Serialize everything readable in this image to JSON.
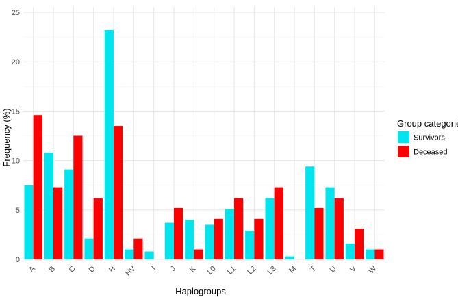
{
  "chart_data": {
    "type": "bar",
    "title": "",
    "xlabel": "Haplogroups",
    "ylabel": "Frequency (%)",
    "ylim": [
      0,
      25
    ],
    "yticks": [
      0,
      5,
      10,
      15,
      20,
      25
    ],
    "grid": true,
    "legend": {
      "title": "Group categories",
      "position": "right"
    },
    "categories": [
      "A",
      "B",
      "C",
      "D",
      "H",
      "HV",
      "I",
      "J",
      "K",
      "L0",
      "L1",
      "L2",
      "L3",
      "M",
      "T",
      "U",
      "V",
      "W"
    ],
    "series": [
      {
        "name": "Survivors",
        "color": "#00E5EE",
        "values": [
          7.5,
          10.8,
          9.1,
          2.1,
          23.2,
          1.0,
          0.8,
          3.7,
          4.0,
          3.5,
          5.1,
          2.9,
          6.2,
          0.3,
          9.4,
          7.3,
          1.6,
          1.0
        ]
      },
      {
        "name": "Deceased",
        "color": "#FF0000",
        "values": [
          14.6,
          7.3,
          12.5,
          6.2,
          13.5,
          2.1,
          0.0,
          5.2,
          1.0,
          4.1,
          6.2,
          4.1,
          7.3,
          0.0,
          5.2,
          6.2,
          3.1,
          1.0
        ]
      }
    ]
  }
}
